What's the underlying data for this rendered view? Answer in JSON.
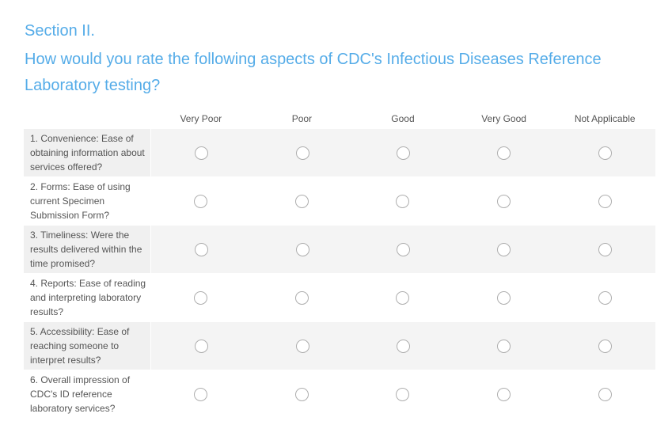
{
  "page": {
    "section_title": "Section II.",
    "question": "How would you rate the following aspects of CDC's Infectious Diseases Reference Laboratory testing?"
  },
  "matrix": {
    "columns": [
      "Very Poor",
      "Poor",
      "Good",
      "Very Good",
      "Not Applicable"
    ],
    "rows": [
      "1. Convenience: Ease of obtaining information about services offered?",
      "2. Forms: Ease of using current Specimen Submission Form?",
      "3. Timeliness: Were the results delivered within the time promised?",
      "4. Reports: Ease of reading and interpreting laboratory results?",
      "5. Accessibility: Ease of reaching someone to interpret results?",
      "6. Overall impression of CDC's ID reference laboratory services?"
    ],
    "selected_answers": null
  },
  "colors": {
    "accent_blue": "#55ace8",
    "stripe_label": "#f0f0f0",
    "stripe_options": "#f4f4f4",
    "text_gray": "#555555",
    "radio_border": "#aeaeae"
  }
}
